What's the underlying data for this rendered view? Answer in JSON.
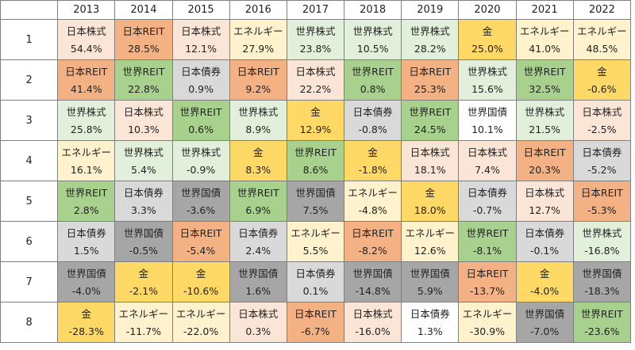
{
  "years": [
    "2013",
    "2014",
    "2015",
    "2016",
    "2017",
    "2018",
    "2019",
    "2020",
    "2021",
    "2022"
  ],
  "ranks": [
    "1",
    "2",
    "3",
    "4",
    "5",
    "6",
    "7",
    "8"
  ],
  "asset_colors": {
    "日本株式": "#fbe5d6",
    "日本REIT": "#f4b183",
    "世界株式": "#e2efda",
    "世界REIT": "#a9d18e",
    "日本債券": "#d9d9d9",
    "世界国債": "#a6a6a6",
    "金": "#ffd966",
    "エネルギー": "#fff2cc"
  },
  "asset_color_overrides": {
    "2020|世界国債": "#ffffff",
    "2021|日本債券": "#d9d9d9",
    "2019|日本債券": "#ffffff"
  },
  "rows": [
    [
      [
        "日本株式",
        "54.4%"
      ],
      [
        "日本REIT",
        "28.5%"
      ],
      [
        "日本株式",
        "12.1%"
      ],
      [
        "エネルギー",
        "27.9%"
      ],
      [
        "世界株式",
        "23.8%"
      ],
      [
        "世界株式",
        "10.5%"
      ],
      [
        "世界株式",
        "28.2%"
      ],
      [
        "金",
        "25.0%"
      ],
      [
        "エネルギー",
        "41.0%"
      ],
      [
        "エネルギー",
        "48.5%"
      ]
    ],
    [
      [
        "日本REIT",
        "41.4%"
      ],
      [
        "世界REIT",
        "22.8%"
      ],
      [
        "日本債券",
        "0.9%"
      ],
      [
        "日本REIT",
        "9.2%"
      ],
      [
        "日本株式",
        "22.2%"
      ],
      [
        "世界REIT",
        "0.8%"
      ],
      [
        "日本REIT",
        "25.3%"
      ],
      [
        "世界株式",
        "15.6%"
      ],
      [
        "世界REIT",
        "32.5%"
      ],
      [
        "金",
        "-0.6%"
      ]
    ],
    [
      [
        "世界株式",
        "25.8%"
      ],
      [
        "日本株式",
        "10.3%"
      ],
      [
        "世界REIT",
        "0.6%"
      ],
      [
        "世界株式",
        "8.9%"
      ],
      [
        "金",
        "12.9%"
      ],
      [
        "日本債券",
        "-0.8%"
      ],
      [
        "世界REIT",
        "24.5%"
      ],
      [
        "世界国債",
        "10.1%"
      ],
      [
        "世界株式",
        "21.5%"
      ],
      [
        "日本株式",
        "-2.5%"
      ]
    ],
    [
      [
        "エネルギー",
        "16.1%"
      ],
      [
        "世界株式",
        "5.4%"
      ],
      [
        "世界株式",
        "-0.9%"
      ],
      [
        "金",
        "8.3%"
      ],
      [
        "世界REIT",
        "8.6%"
      ],
      [
        "金",
        "-1.8%"
      ],
      [
        "日本株式",
        "18.1%"
      ],
      [
        "日本株式",
        "7.4%"
      ],
      [
        "日本REIT",
        "20.3%"
      ],
      [
        "日本債券",
        "-5.2%"
      ]
    ],
    [
      [
        "世界REIT",
        "2.8%"
      ],
      [
        "日本債券",
        "3.3%"
      ],
      [
        "世界国債",
        "-3.6%"
      ],
      [
        "世界REIT",
        "6.9%"
      ],
      [
        "世界国債",
        "7.5%"
      ],
      [
        "エネルギー",
        "-4.8%"
      ],
      [
        "金",
        "18.0%"
      ],
      [
        "日本債券",
        "-0.7%"
      ],
      [
        "日本株式",
        "12.7%"
      ],
      [
        "日本REIT",
        "-5.3%"
      ]
    ],
    [
      [
        "日本債券",
        "1.5%"
      ],
      [
        "世界国債",
        "-0.5%"
      ],
      [
        "日本REIT",
        "-5.4%"
      ],
      [
        "日本債券",
        "2.4%"
      ],
      [
        "エネルギー",
        "5.5%"
      ],
      [
        "日本REIT",
        "-8.2%"
      ],
      [
        "エネルギー",
        "12.6%"
      ],
      [
        "世界REIT",
        "-8.1%"
      ],
      [
        "日本債券",
        "-0.1%"
      ],
      [
        "世界株式",
        "-16.8%"
      ]
    ],
    [
      [
        "世界国債",
        "-4.0%"
      ],
      [
        "金",
        "-2.1%"
      ],
      [
        "金",
        "-10.6%"
      ],
      [
        "世界国債",
        "1.6%"
      ],
      [
        "日本債券",
        "0.1%"
      ],
      [
        "世界国債",
        "-14.8%"
      ],
      [
        "世界国債",
        "5.9%"
      ],
      [
        "日本REIT",
        "-13.7%"
      ],
      [
        "金",
        "-4.0%"
      ],
      [
        "世界国債",
        "-18.3%"
      ]
    ],
    [
      [
        "金",
        "-28.3%"
      ],
      [
        "エネルギー",
        "-11.7%"
      ],
      [
        "エネルギー",
        "-22.0%"
      ],
      [
        "日本株式",
        "0.3%"
      ],
      [
        "日本REIT",
        "-6.7%"
      ],
      [
        "日本株式",
        "-16.0%"
      ],
      [
        "日本債券",
        "1.3%"
      ],
      [
        "エネルギー",
        "-30.9%"
      ],
      [
        "世界国債",
        "-7.0%"
      ],
      [
        "世界REIT",
        "-23.6%"
      ]
    ]
  ]
}
